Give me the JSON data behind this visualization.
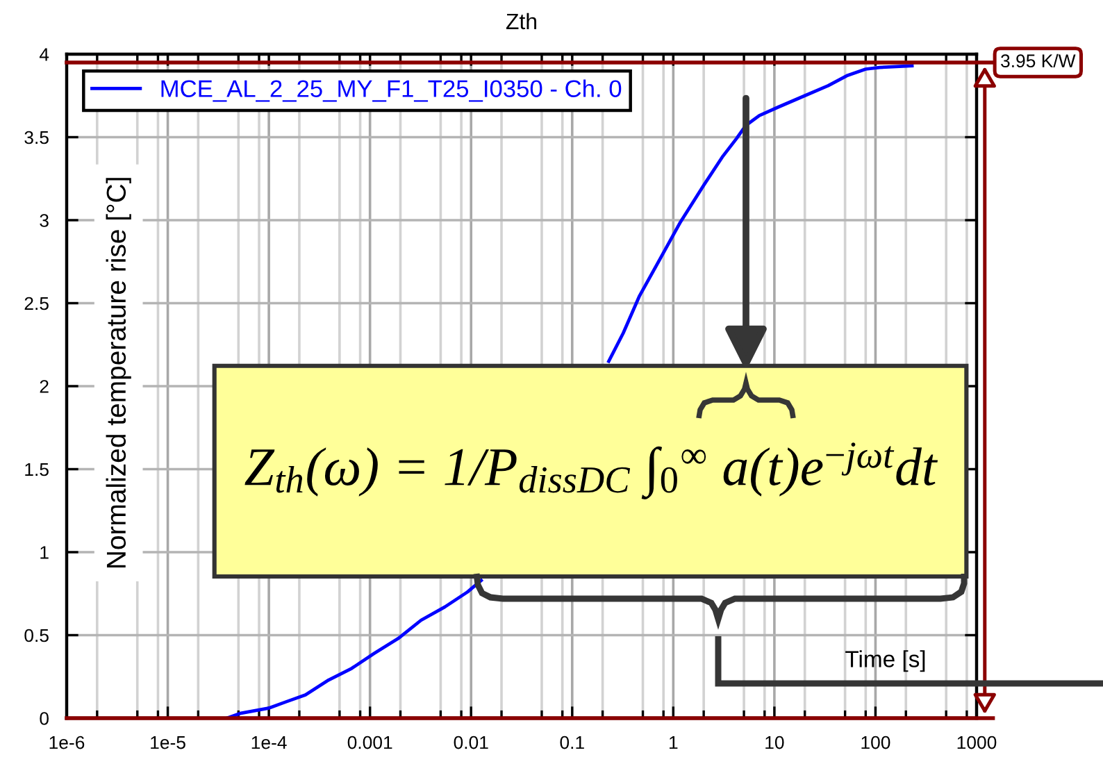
{
  "chart_data": {
    "type": "line",
    "title": "Zth",
    "xlabel": "Time [s]",
    "ylabel": "Normalized temperature rise [°C]",
    "log": "x",
    "grid": true,
    "legend": "top left",
    "marker": "none",
    "line_style": "solid",
    "xlim": [
      1e-06,
      1000
    ],
    "xticks": [
      {
        "value": 1e-06,
        "label": "1e-6"
      },
      {
        "value": 1e-05,
        "label": "1e-5"
      },
      {
        "value": 0.0001,
        "label": "1e-4"
      },
      0.001,
      0.01,
      0.1,
      1,
      10,
      100,
      1000
    ],
    "ylim": [
      0,
      4
    ],
    "yticks": [
      0,
      0.5,
      1,
      1.5,
      2,
      2.5,
      3,
      3.5,
      4
    ],
    "x": [
      3.84e-05,
      5.3e-05,
      9.9e-05,
      0.00015,
      0.00023,
      0.00039,
      0.00066,
      0.0011,
      0.0019,
      0.0032,
      0.0055,
      0.0092,
      0.0126,
      0.05,
      0.23,
      0.32,
      0.46,
      0.7,
      1.18,
      2.0,
      3.05,
      4.2,
      5.2,
      7.1,
      10.8,
      20,
      34,
      52,
      80,
      110,
      230
    ],
    "series": [
      {
        "name": "MCE_AL_2_25_MY_F1_T25_I0350 - Ch. 0",
        "color": "#0000ff",
        "values": [
          0,
          0.03,
          0.06,
          0.1,
          0.14,
          0.23,
          0.3,
          0.39,
          0.48,
          0.59,
          0.67,
          0.76,
          0.83,
          null,
          2.15,
          2.32,
          2.54,
          2.74,
          2.99,
          3.21,
          3.38,
          3.49,
          3.57,
          3.63,
          3.68,
          3.75,
          3.81,
          3.87,
          3.91,
          3.92,
          3.93
        ]
      }
    ],
    "ref_lines": [
      {
        "axis": "y",
        "value": 0,
        "color": "#8b0000"
      },
      {
        "axis": "y",
        "value": 3.95,
        "label": "3.95 K/W",
        "color": "#8b0000"
      }
    ],
    "annotations": [
      "Z$_{th}$(ω) = 1/P$_{dissDC}$ ∫$_{0}$$^{∞}$ a(t)e$^{−jωt}$dt"
    ]
  }
}
